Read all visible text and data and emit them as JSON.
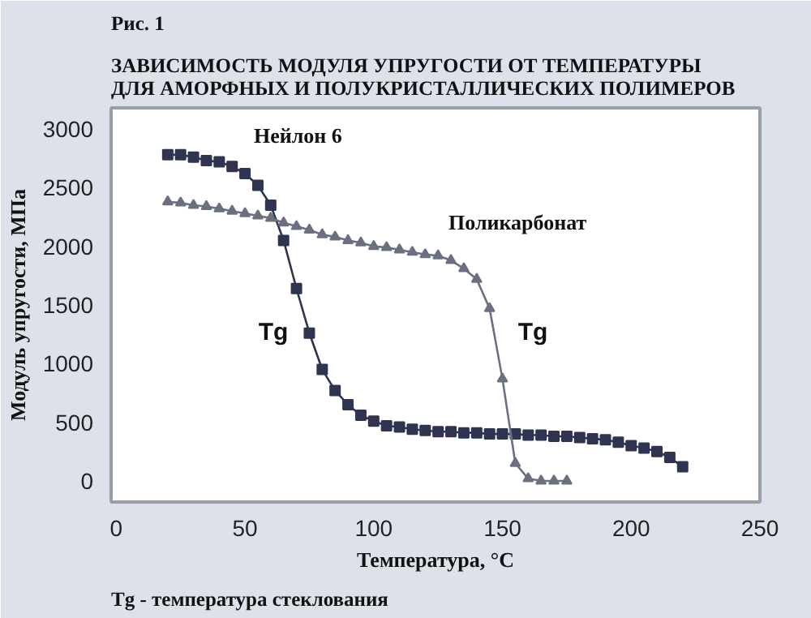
{
  "chart_data": {
    "type": "line",
    "title": "Рис. 1",
    "subtitle": "ЗАВИСИМОСТЬ МОДУЛЯ УПРУГОСТИ ОТ ТЕМПЕРАТУРЫ\nДЛЯ АМОРФНЫХ И ПОЛУКРИСТАЛЛИЧЕСКИХ ПОЛИМЕРОВ",
    "xlabel": "Температура, °C",
    "ylabel": "Модуль упругости, МПа",
    "xlim": [
      -2,
      250
    ],
    "ylim": [
      -180,
      3180
    ],
    "xticks": [
      0,
      50,
      100,
      150,
      200,
      250
    ],
    "yticks": [
      0,
      500,
      1000,
      1500,
      2000,
      2500,
      3000
    ],
    "series": [
      {
        "name": "Нейлон 6",
        "color": "#2f3550",
        "marker": "square",
        "x": [
          20,
          25,
          30,
          35,
          40,
          45,
          50,
          55,
          60,
          65,
          70,
          75,
          80,
          85,
          90,
          95,
          100,
          105,
          110,
          115,
          120,
          125,
          130,
          135,
          140,
          145,
          150,
          155,
          160,
          165,
          170,
          175,
          180,
          185,
          190,
          195,
          200,
          205,
          210,
          215,
          220
        ],
        "values": [
          2780,
          2780,
          2760,
          2730,
          2720,
          2680,
          2620,
          2520,
          2350,
          2050,
          1640,
          1260,
          950,
          770,
          650,
          560,
          510,
          470,
          460,
          440,
          430,
          420,
          420,
          410,
          410,
          400,
          400,
          400,
          390,
          390,
          380,
          380,
          370,
          360,
          350,
          330,
          300,
          280,
          250,
          200,
          120
        ]
      },
      {
        "name": "Поликарбонат",
        "color": "#6a7080",
        "marker": "triangle",
        "x": [
          20,
          25,
          30,
          35,
          40,
          45,
          50,
          55,
          60,
          65,
          70,
          75,
          80,
          85,
          90,
          95,
          100,
          105,
          110,
          115,
          120,
          125,
          130,
          135,
          140,
          145,
          150,
          155,
          160,
          165,
          170,
          175
        ],
        "values": [
          2380,
          2370,
          2350,
          2340,
          2320,
          2300,
          2280,
          2260,
          2240,
          2200,
          2170,
          2140,
          2100,
          2080,
          2050,
          2030,
          2000,
          1990,
          1970,
          1950,
          1930,
          1920,
          1880,
          1810,
          1720,
          1470,
          870,
          150,
          20,
          0,
          0,
          0
        ]
      }
    ],
    "annotations": [
      "Tg",
      "Tg",
      "Tg - температура стеклования"
    ]
  }
}
